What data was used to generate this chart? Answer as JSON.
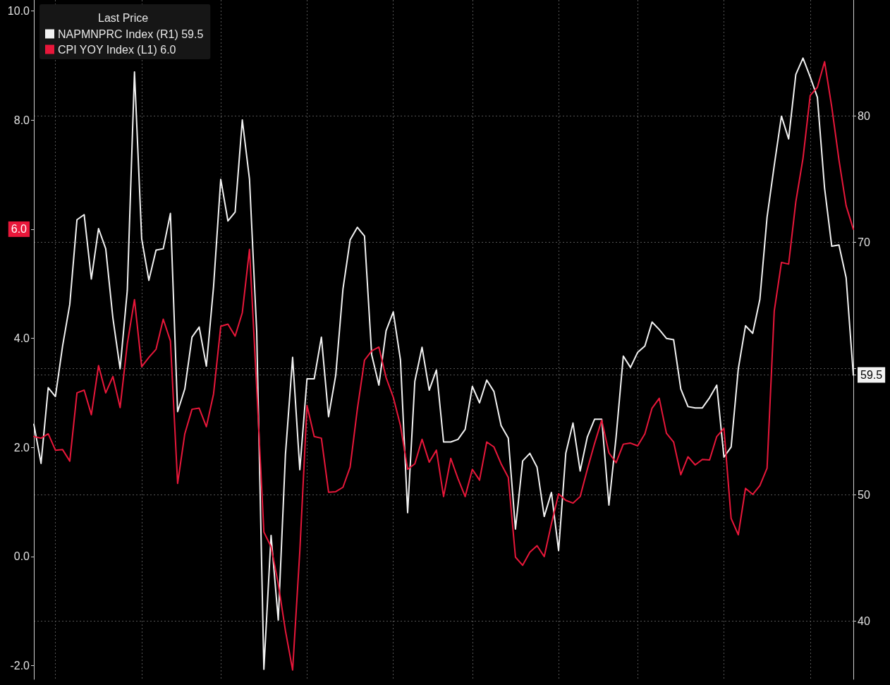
{
  "chart_data": {
    "type": "line",
    "legend_title": "Last Price",
    "legend": "top left",
    "grid": true,
    "line_style": "solid",
    "marker": "none",
    "categories": [
      null,
      null,
      null,
      null,
      null,
      null,
      null,
      null,
      null,
      null,
      null,
      null,
      null,
      null,
      null,
      null,
      null,
      null,
      null,
      null,
      null,
      null,
      null,
      null,
      null,
      null,
      null,
      null,
      null,
      null,
      null,
      null,
      null,
      null,
      null,
      null,
      null,
      null,
      null,
      null,
      null,
      null,
      null,
      null,
      null,
      null,
      null,
      null,
      null,
      null,
      null,
      null,
      null,
      null,
      null,
      null,
      null,
      null,
      null,
      null,
      null,
      null,
      null,
      null,
      null,
      null,
      null,
      null,
      null,
      null,
      null,
      null,
      null,
      null,
      null,
      null,
      null,
      null,
      null,
      null,
      null,
      null,
      null,
      null,
      null,
      null,
      null,
      null,
      null,
      null,
      null,
      null,
      null,
      null,
      null,
      null,
      null,
      null,
      null,
      null,
      null,
      null,
      null,
      null,
      null,
      null,
      null,
      null,
      null,
      null,
      null,
      null,
      null,
      null,
      null
    ],
    "ylim": [
      -2.25,
      10.2
    ],
    "yticks": [
      {
        "value": -2,
        "label": "-2.0"
      },
      {
        "value": 0,
        "label": "0.0"
      },
      {
        "value": 2,
        "label": "2.0"
      },
      {
        "value": 4,
        "label": "4.0"
      },
      {
        "value": 6,
        "label": "6.0"
      },
      {
        "value": 8,
        "label": "8.0"
      },
      {
        "value": 10,
        "label": "10.0"
      }
    ],
    "y2lim": [
      35.4,
      89.2
    ],
    "y2ticks": [
      40,
      50,
      {
        "value": 60,
        "label": null
      },
      70,
      80,
      {
        "value": 59.5,
        "label": "59.5"
      }
    ],
    "series": [
      {
        "name": "NAPMNPRC Index (R1) 59.5",
        "color": "#f2f2f2",
        "axis": "y2",
        "values": [
          55.6,
          52.5,
          58.5,
          57.8,
          61.8,
          65.1,
          71.8,
          72.2,
          67.1,
          71.1,
          69.5,
          64,
          60,
          66.2,
          83.5,
          70.3,
          67,
          69.4,
          69.5,
          72.3,
          56.6,
          58.4,
          62.5,
          63.3,
          60.2,
          66.5,
          75,
          71.7,
          72.4,
          79.7,
          75,
          63,
          36.2,
          46.8,
          40.1,
          53.2,
          60.9,
          52,
          59.2,
          59.2,
          62.5,
          56.2,
          59.5,
          66.3,
          70.2,
          71.2,
          70.5,
          61.1,
          58.7,
          63,
          64.5,
          60.7,
          48.6,
          59,
          61.7,
          58.3,
          59.9,
          54.2,
          54.2,
          54.4,
          55.2,
          58.6,
          57.3,
          59.1,
          58.2,
          55.5,
          54.5,
          47.3,
          52.7,
          53.3,
          52.2,
          48.3,
          50.2,
          45.6,
          53.3,
          55.7,
          51.9,
          54.6,
          56,
          56,
          49.2,
          54.6,
          61,
          60.1,
          61.3,
          61.8,
          63.7,
          63.1,
          62.4,
          62.3,
          58.4,
          57,
          56.9,
          56.9,
          57.7,
          58.7,
          53,
          53.8,
          60,
          63.4,
          62.8,
          65.5,
          72,
          76.1,
          80,
          78.2,
          83.3,
          84.6,
          83.1,
          81.5,
          74.3,
          69.7,
          69.8,
          67.2,
          59.5
        ]
      },
      {
        "name": "CPI YOY Index (L1) 6.0",
        "color": "#e8173a",
        "values": [
          2.2,
          2.17,
          2.25,
          1.95,
          1.96,
          1.75,
          3,
          3.05,
          2.6,
          3.5,
          3,
          3.3,
          2.73,
          3.9,
          4.71,
          3.48,
          3.65,
          3.8,
          4.35,
          3.95,
          1.34,
          2.25,
          2.7,
          2.72,
          2.38,
          2.98,
          4.22,
          4.26,
          4.04,
          4.47,
          5.63,
          3.1,
          0.45,
          0.18,
          -0.5,
          -1.36,
          -2.08,
          0.1,
          2.77,
          2.2,
          2.17,
          1.18,
          1.19,
          1.27,
          1.64,
          2.7,
          3.6,
          3.77,
          3.84,
          3.28,
          2.92,
          2.4,
          1.6,
          1.7,
          2.15,
          1.73,
          1.95,
          1.1,
          1.8,
          1.43,
          1.1,
          1.6,
          1.4,
          2.1,
          2.01,
          1.7,
          1.45,
          -0.01,
          -0.16,
          0.08,
          0.2,
          0,
          0.6,
          1.15,
          1.03,
          0.98,
          1.1,
          1.6,
          2.07,
          2.5,
          1.9,
          1.72,
          2.06,
          2.08,
          2.03,
          2.25,
          2.72,
          2.9,
          2.26,
          2.1,
          1.5,
          1.83,
          1.68,
          1.78,
          1.77,
          2.2,
          2.35,
          0.7,
          0.4,
          1.25,
          1.14,
          1.3,
          1.62,
          4.5,
          5.39,
          5.36,
          6.5,
          7.3,
          8.45,
          8.6,
          9.07,
          8.24,
          7.27,
          6.43,
          6
        ]
      }
    ]
  }
}
